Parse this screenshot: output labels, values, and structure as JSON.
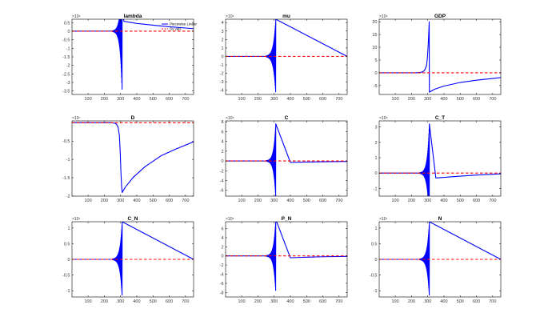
{
  "colors": {
    "series1": "#0000ff",
    "series2": "#ff0000",
    "axes": "#000000",
    "background": "#ffffff"
  },
  "chart_data": [
    {
      "type": "line",
      "title": "lambda",
      "exponent_label": "×10⁵",
      "xlim": [
        1,
        750
      ],
      "ylim": [
        -3.7,
        0.7
      ],
      "xticks": [
        100,
        200,
        300,
        400,
        500,
        600,
        700
      ],
      "yticks": [
        -3.5,
        -3,
        -2.5,
        -2,
        -1.5,
        -1,
        -0.5,
        0,
        0.5
      ],
      "ytick_labels": [
        "-3.5",
        "-3",
        "-2.5",
        "-2",
        "-1.5",
        "-1",
        "-0.5",
        "0",
        "0.5"
      ],
      "series": [
        {
          "name": "Piecewise Linear",
          "style": "solid",
          "points": [
            [
              1,
              0
            ],
            [
              240,
              0
            ],
            [
              262,
              0.01
            ],
            [
              278,
              0.03
            ],
            [
              288,
              0.06
            ],
            [
              296,
              0.1
            ],
            [
              300,
              0.2
            ],
            [
              305,
              -0.3
            ],
            [
              310,
              0.5
            ],
            [
              320,
              0.58
            ],
            [
              400,
              0.45
            ],
            [
              500,
              0.35
            ],
            [
              600,
              0.26
            ],
            [
              750,
              0.15
            ]
          ],
          "oscillation": {
            "x0": 250,
            "x1": 310,
            "amp_start": 0.02,
            "amp_end": 3.6,
            "center": 0
          }
        },
        {
          "name": "Ss vals",
          "style": "dashed",
          "points": [
            [
              1,
              0
            ],
            [
              750,
              0
            ]
          ]
        }
      ],
      "legend": "top-right"
    },
    {
      "type": "line",
      "title": "mu",
      "exponent_label": "×10⁶",
      "xlim": [
        1,
        750
      ],
      "ylim": [
        -4.5,
        4.4
      ],
      "xticks": [
        100,
        200,
        300,
        400,
        500,
        600,
        700
      ],
      "yticks": [
        -4,
        -3,
        -2,
        -1,
        0,
        1,
        2,
        3,
        4
      ],
      "ytick_labels": [
        "-4",
        "-3",
        "-2",
        "-1",
        "0",
        "1",
        "2",
        "3",
        "4"
      ],
      "series": [
        {
          "name": "Piecewise Linear",
          "style": "solid",
          "points": [
            [
              1,
              0
            ],
            [
              750,
              0
            ]
          ],
          "oscillation": {
            "x0": 250,
            "x1": 310,
            "amp_start": 0.05,
            "amp_end": 4.4,
            "center": 0
          }
        },
        {
          "name": "Ss vals",
          "style": "dashed",
          "points": [
            [
              1,
              0
            ],
            [
              750,
              0
            ]
          ]
        }
      ]
    },
    {
      "type": "line",
      "title": "GDP",
      "exponent_label": "×10⁵",
      "xlim": [
        1,
        750
      ],
      "ylim": [
        -8.5,
        21
      ],
      "xticks": [
        100,
        200,
        300,
        400,
        500,
        600,
        700
      ],
      "yticks": [
        -5,
        0,
        5,
        10,
        15,
        20
      ],
      "ytick_labels": [
        "-5",
        "0",
        "5",
        "10",
        "15",
        "20"
      ],
      "series": [
        {
          "name": "Piecewise Linear",
          "style": "solid",
          "points": [
            [
              1,
              0
            ],
            [
              230,
              0
            ],
            [
              260,
              0.2
            ],
            [
              275,
              0.6
            ],
            [
              285,
              1.5
            ],
            [
              293,
              3
            ],
            [
              298,
              6
            ],
            [
              302,
              10
            ],
            [
              306,
              15
            ],
            [
              309,
              20
            ],
            [
              310,
              -7.6
            ],
            [
              340,
              -6.5
            ],
            [
              400,
              -5.2
            ],
            [
              500,
              -3.8
            ],
            [
              600,
              -2.9
            ],
            [
              750,
              -1.9
            ]
          ]
        },
        {
          "name": "Ss vals",
          "style": "dashed",
          "points": [
            [
              1,
              0
            ],
            [
              750,
              0
            ]
          ]
        }
      ]
    },
    {
      "type": "line",
      "title": "D",
      "exponent_label": "×10⁷",
      "xlim": [
        1,
        750
      ],
      "ylim": [
        -2.0,
        0.05
      ],
      "xticks": [
        100,
        200,
        300,
        400,
        500,
        600,
        700
      ],
      "yticks": [
        -2,
        -1.5,
        -1,
        -0.5
      ],
      "ytick_labels": [
        "-2",
        "-1.5",
        "-1",
        "-0.5"
      ],
      "series": [
        {
          "name": "Piecewise Linear",
          "style": "solid",
          "points": [
            [
              1,
              0
            ],
            [
              240,
              0
            ],
            [
              262,
              -0.01
            ],
            [
              275,
              -0.04
            ],
            [
              285,
              -0.12
            ],
            [
              293,
              -0.35
            ],
            [
              298,
              -0.8
            ],
            [
              302,
              -1.3
            ],
            [
              306,
              -1.7
            ],
            [
              310,
              -1.9
            ],
            [
              330,
              -1.75
            ],
            [
              380,
              -1.48
            ],
            [
              450,
              -1.2
            ],
            [
              550,
              -0.9
            ],
            [
              650,
              -0.7
            ],
            [
              750,
              -0.52
            ]
          ]
        },
        {
          "name": "Ss vals",
          "style": "dashed",
          "points": [
            [
              1,
              0
            ],
            [
              750,
              0
            ]
          ]
        }
      ]
    },
    {
      "type": "line",
      "title": "C",
      "exponent_label": "×10⁵",
      "xlim": [
        1,
        750
      ],
      "ylim": [
        -7.2,
        8.2
      ],
      "xticks": [
        100,
        200,
        300,
        400,
        500,
        600,
        700
      ],
      "yticks": [
        -6,
        -4,
        -2,
        0,
        2,
        4,
        6,
        8
      ],
      "ytick_labels": [
        "-6",
        "-4",
        "-2",
        "0",
        "2",
        "4",
        "6",
        "8"
      ],
      "series": [
        {
          "name": "Piecewise Linear",
          "style": "solid",
          "points": [
            [
              1,
              0
            ],
            [
              300,
              0
            ],
            [
              310,
              -0.4
            ],
            [
              400,
              -0.3
            ],
            [
              500,
              -0.22
            ],
            [
              600,
              -0.16
            ],
            [
              750,
              -0.1
            ]
          ],
          "oscillation": {
            "x0": 250,
            "x1": 310,
            "amp_start": 0.05,
            "amp_end": 7.6,
            "center": 0
          }
        },
        {
          "name": "Ss vals",
          "style": "dashed",
          "points": [
            [
              1,
              0
            ],
            [
              750,
              0
            ]
          ]
        }
      ]
    },
    {
      "type": "line",
      "title": "C_T",
      "exponent_label": "×10⁵",
      "xlim": [
        1,
        750
      ],
      "ylim": [
        -1.5,
        3.4
      ],
      "xticks": [
        100,
        200,
        300,
        400,
        500,
        600,
        700
      ],
      "yticks": [
        -1,
        0,
        1,
        2,
        3
      ],
      "ytick_labels": [
        "-1",
        "0",
        "1",
        "2",
        "3"
      ],
      "series": [
        {
          "name": "Piecewise Linear",
          "style": "solid",
          "points": [
            [
              1,
              0
            ],
            [
              300,
              0
            ],
            [
              310,
              -0.35
            ],
            [
              350,
              -0.32
            ],
            [
              400,
              -0.28
            ],
            [
              500,
              -0.2
            ],
            [
              600,
              -0.13
            ],
            [
              750,
              -0.05
            ]
          ],
          "oscillation": {
            "x0": 250,
            "x1": 310,
            "amp_start": 0.02,
            "amp_end": 3.2,
            "center": 0
          }
        },
        {
          "name": "Ss vals",
          "style": "dashed",
          "points": [
            [
              1,
              0
            ],
            [
              750,
              0
            ]
          ]
        }
      ]
    },
    {
      "type": "line",
      "title": "C_N",
      "exponent_label": "×10⁷",
      "xlim": [
        1,
        750
      ],
      "ylim": [
        -1.2,
        1.2
      ],
      "xticks": [
        100,
        200,
        300,
        400,
        500,
        600,
        700
      ],
      "yticks": [
        -1,
        -0.5,
        0,
        0.5,
        1
      ],
      "ytick_labels": [
        "-1",
        "-0.5",
        "0",
        "0.5",
        "1"
      ],
      "series": [
        {
          "name": "Piecewise Linear",
          "style": "solid",
          "points": [
            [
              1,
              0
            ],
            [
              750,
              0
            ]
          ],
          "oscillation": {
            "x0": 250,
            "x1": 310,
            "amp_start": 0.01,
            "amp_end": 1.2,
            "center": 0
          }
        },
        {
          "name": "Ss vals",
          "style": "dashed",
          "points": [
            [
              1,
              0
            ],
            [
              750,
              0
            ]
          ]
        }
      ]
    },
    {
      "type": "line",
      "title": "P_N",
      "exponent_label": "×10⁵",
      "xlim": [
        1,
        750
      ],
      "ylim": [
        -9,
        7.5
      ],
      "xticks": [
        100,
        200,
        300,
        400,
        500,
        600,
        700
      ],
      "yticks": [
        -8,
        -6,
        -4,
        -2,
        0,
        2,
        4,
        6
      ],
      "ytick_labels": [
        "-8",
        "-6",
        "-4",
        "-2",
        "0",
        "2",
        "4",
        "6"
      ],
      "series": [
        {
          "name": "Piecewise Linear",
          "style": "solid",
          "points": [
            [
              1,
              0
            ],
            [
              300,
              0
            ],
            [
              310,
              -0.5
            ],
            [
              400,
              -0.4
            ],
            [
              500,
              -0.28
            ],
            [
              600,
              -0.18
            ],
            [
              750,
              -0.1
            ]
          ],
          "oscillation": {
            "x0": 250,
            "x1": 310,
            "amp_start": 0.05,
            "amp_end": 8,
            "center": 0
          }
        },
        {
          "name": "Ss vals",
          "style": "dashed",
          "points": [
            [
              1,
              0
            ],
            [
              750,
              0
            ]
          ]
        }
      ]
    },
    {
      "type": "line",
      "title": "N",
      "exponent_label": "×10⁷",
      "xlim": [
        1,
        750
      ],
      "ylim": [
        -1.2,
        1.2
      ],
      "xticks": [
        100,
        200,
        300,
        400,
        500,
        600,
        700
      ],
      "yticks": [
        -1,
        -0.5,
        0,
        0.5,
        1
      ],
      "ytick_labels": [
        "-1",
        "-0.5",
        "0",
        "0.5",
        "1"
      ],
      "series": [
        {
          "name": "Piecewise Linear",
          "style": "solid",
          "points": [
            [
              1,
              0
            ],
            [
              750,
              0
            ]
          ],
          "oscillation": {
            "x0": 250,
            "x1": 310,
            "amp_start": 0.01,
            "amp_end": 1.2,
            "center": 0
          }
        },
        {
          "name": "Ss vals",
          "style": "dashed",
          "points": [
            [
              1,
              0
            ],
            [
              750,
              0
            ]
          ]
        }
      ]
    }
  ]
}
